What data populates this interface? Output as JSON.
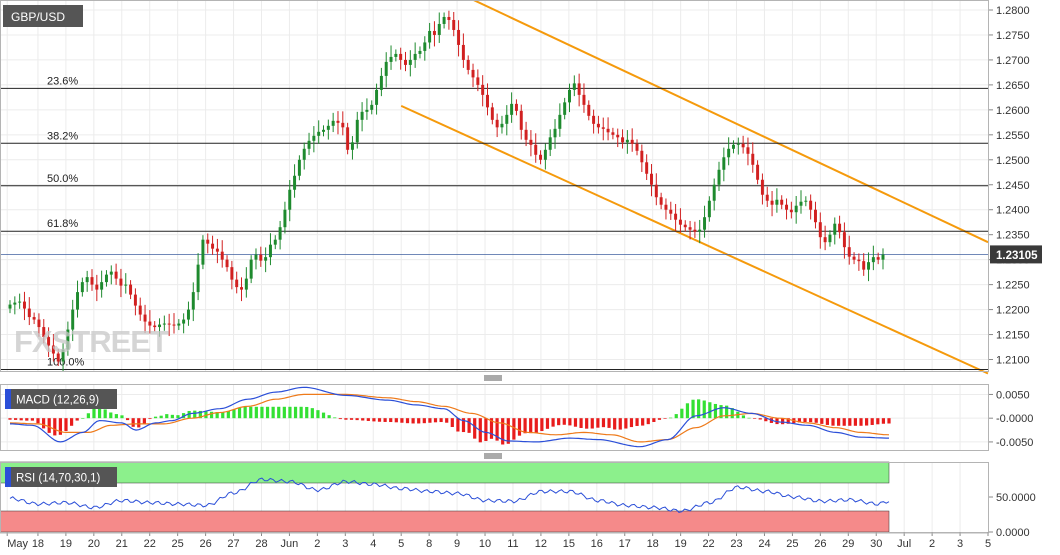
{
  "symbol": "GBP/USD",
  "last_price": "1.23105",
  "watermark": "FXSTREET",
  "colors": {
    "up": "#1e8a2e",
    "down": "#d12020",
    "channel": "#f59a0c",
    "macd_line": "#2b4fd8",
    "signal_line": "#ee7a1a",
    "hist_up": "#33e033",
    "hist_down": "#e81c1c",
    "rsi_line": "#2b4fd8",
    "rsi_overbought": "#8cf08c",
    "rsi_oversold": "#f58a8a",
    "last_price_badge": "#3a3a3a"
  },
  "chart_data": [
    {
      "type": "candlestick",
      "title": "GBP/USD",
      "ylim": [
        1.2075,
        1.282
      ],
      "y_ticks": [
        "1.2800",
        "1.2750",
        "1.2700",
        "1.2650",
        "1.2600",
        "1.2550",
        "1.2500",
        "1.2450",
        "1.2400",
        "1.2350",
        "1.2300",
        "1.2250",
        "1.2200",
        "1.2150",
        "1.2100"
      ],
      "x_ticks": [
        {
          "label": "May",
          "slot": -0.5
        },
        {
          "label": "18",
          "slot": 5
        },
        {
          "label": "19",
          "slot": 10
        },
        {
          "label": "20",
          "slot": 15
        },
        {
          "label": "21",
          "slot": 20
        },
        {
          "label": "22",
          "slot": 25
        },
        {
          "label": "25",
          "slot": 30
        },
        {
          "label": "26",
          "slot": 35
        },
        {
          "label": "27",
          "slot": 40
        },
        {
          "label": "28",
          "slot": 45
        },
        {
          "label": "Jun",
          "slot": 50
        },
        {
          "label": "2",
          "slot": 55
        },
        {
          "label": "3",
          "slot": 60
        },
        {
          "label": "4",
          "slot": 65
        },
        {
          "label": "5",
          "slot": 70
        },
        {
          "label": "8",
          "slot": 75
        },
        {
          "label": "9",
          "slot": 80
        },
        {
          "label": "10",
          "slot": 85
        },
        {
          "label": "11",
          "slot": 90
        },
        {
          "label": "12",
          "slot": 95
        },
        {
          "label": "15",
          "slot": 100
        },
        {
          "label": "16",
          "slot": 105
        },
        {
          "label": "17",
          "slot": 110
        },
        {
          "label": "18",
          "slot": 115
        },
        {
          "label": "19",
          "slot": 120
        },
        {
          "label": "22",
          "slot": 125
        },
        {
          "label": "23",
          "slot": 130
        },
        {
          "label": "24",
          "slot": 135
        },
        {
          "label": "25",
          "slot": 140
        },
        {
          "label": "26",
          "slot": 145
        },
        {
          "label": "29",
          "slot": 150
        },
        {
          "label": "30",
          "slot": 155
        },
        {
          "label": "Jul",
          "slot": 160
        },
        {
          "label": "2",
          "slot": 165
        },
        {
          "label": "3",
          "slot": 170
        },
        {
          "label": "5",
          "slot": 175
        }
      ],
      "fibonacci": [
        {
          "label": "23.6%",
          "price": 1.2643
        },
        {
          "label": "38.2%",
          "price": 1.2533
        },
        {
          "label": "50.0%",
          "price": 1.2448
        },
        {
          "label": "61.8%",
          "price": 1.2357
        },
        {
          "label": "100.0%",
          "price": 1.208
        }
      ],
      "current_price": 1.23105,
      "channel": [
        {
          "slot_start": 82,
          "price_start": 1.2825,
          "slot_end": 175,
          "price_end": 1.2335
        },
        {
          "slot_start": 70,
          "price_start": 1.2608,
          "slot_end": 175,
          "price_end": 1.2072
        }
      ],
      "closes": [
        1.221,
        1.2214,
        1.2216,
        1.2202,
        1.2185,
        1.218,
        1.2165,
        1.2145,
        1.2128,
        1.2112,
        1.2096,
        1.212,
        1.216,
        1.22,
        1.2235,
        1.2255,
        1.2265,
        1.225,
        1.224,
        1.2255,
        1.227,
        1.2276,
        1.2262,
        1.2248,
        1.225,
        1.223,
        1.2208,
        1.219,
        1.2176,
        1.2168,
        1.2165,
        1.217,
        1.2172,
        1.217,
        1.2168,
        1.2172,
        1.218,
        1.22,
        1.2235,
        1.229,
        1.234,
        1.2332,
        1.2322,
        1.2316,
        1.23,
        1.2285,
        1.226,
        1.2245,
        1.224,
        1.2262,
        1.23,
        1.231,
        1.2298,
        1.2305,
        1.233,
        1.234,
        1.2365,
        1.24,
        1.244,
        1.2468,
        1.25,
        1.2522,
        1.2538,
        1.2548,
        1.2556,
        1.256,
        1.2568,
        1.2578,
        1.2574,
        1.2565,
        1.252,
        1.2535,
        1.258,
        1.2596,
        1.26,
        1.261,
        1.264,
        1.2668,
        1.2696,
        1.2706,
        1.2712,
        1.27,
        1.269,
        1.27,
        1.2712,
        1.2718,
        1.2735,
        1.2758,
        1.275,
        1.2772,
        1.2786,
        1.278,
        1.276,
        1.273,
        1.27,
        1.268,
        1.2665,
        1.265,
        1.263,
        1.2605,
        1.258,
        1.2565,
        1.2572,
        1.259,
        1.2612,
        1.2598,
        1.256,
        1.254,
        1.253,
        1.251,
        1.25,
        1.252,
        1.2545,
        1.2562,
        1.259,
        1.2615,
        1.264,
        1.2653,
        1.263,
        1.261,
        1.2588,
        1.2572,
        1.2565,
        1.2562,
        1.2555,
        1.255,
        1.2545,
        1.2535,
        1.254,
        1.2532,
        1.2518,
        1.2495,
        1.2472,
        1.245,
        1.2425,
        1.241,
        1.24,
        1.2392,
        1.238,
        1.237,
        1.2365,
        1.236,
        1.2356,
        1.236,
        1.2385,
        1.2418,
        1.245,
        1.248,
        1.2505,
        1.2522,
        1.253,
        1.2532,
        1.2525,
        1.2512,
        1.249,
        1.246,
        1.243,
        1.2418,
        1.241,
        1.242,
        1.241,
        1.24,
        1.2395,
        1.2408,
        1.2416,
        1.2418,
        1.24,
        1.2375,
        1.2345,
        1.2335,
        1.235,
        1.2372,
        1.2355,
        1.2325,
        1.2306,
        1.23,
        1.2297,
        1.228,
        1.2295,
        1.2305,
        1.23,
        1.231
      ]
    },
    {
      "type": "line",
      "title": "MACD (12,26,9)",
      "ylim": [
        -0.0067,
        0.0072
      ],
      "y_ticks": [
        "0.0050",
        "-0.0000",
        "-0.0050"
      ],
      "series": [
        {
          "name": "MACD",
          "anchors": [
            [
              0,
              -0.0012
            ],
            [
              8,
              -0.0015
            ],
            [
              18,
              -0.005
            ],
            [
              26,
              -0.003
            ],
            [
              32,
              -0.0005
            ],
            [
              40,
              -0.001
            ],
            [
              45,
              -0.0025
            ],
            [
              52,
              -0.001
            ],
            [
              58,
              -0.0005
            ],
            [
              65,
              0.001
            ],
            [
              75,
              0.002
            ],
            [
              85,
              0.004
            ],
            [
              95,
              0.0055
            ],
            [
              105,
              0.0065
            ],
            [
              120,
              0.0048
            ],
            [
              135,
              0.0038
            ],
            [
              145,
              0.0028
            ],
            [
              155,
              0.002
            ],
            [
              162,
              -0.0005
            ],
            [
              170,
              -0.003
            ],
            [
              178,
              -0.0048
            ],
            [
              188,
              -0.005
            ],
            [
              200,
              -0.0042
            ],
            [
              210,
              -0.0045
            ],
            [
              225,
              -0.006
            ],
            [
              235,
              -0.0045
            ],
            [
              245,
              0.0005
            ],
            [
              255,
              0.0022
            ],
            [
              265,
              0.001
            ],
            [
              275,
              -0.0008
            ],
            [
              285,
              -0.0015
            ],
            [
              295,
              -0.003
            ],
            [
              304,
              -0.004
            ],
            [
              314,
              -0.0042
            ]
          ]
        },
        {
          "name": "Signal",
          "anchors": [
            [
              0,
              -0.001
            ],
            [
              10,
              -0.0012
            ],
            [
              20,
              -0.003
            ],
            [
              28,
              -0.003
            ],
            [
              36,
              -0.0015
            ],
            [
              45,
              -0.0012
            ],
            [
              55,
              -0.0012
            ],
            [
              65,
              0.0
            ],
            [
              75,
              0.0012
            ],
            [
              85,
              0.0025
            ],
            [
              95,
              0.004
            ],
            [
              105,
              0.005
            ],
            [
              120,
              0.005
            ],
            [
              135,
              0.0043
            ],
            [
              145,
              0.0035
            ],
            [
              155,
              0.0025
            ],
            [
              165,
              0.001
            ],
            [
              175,
              -0.001
            ],
            [
              185,
              -0.003
            ],
            [
              195,
              -0.0035
            ],
            [
              205,
              -0.003
            ],
            [
              215,
              -0.0035
            ],
            [
              225,
              -0.005
            ],
            [
              235,
              -0.0045
            ],
            [
              245,
              -0.002
            ],
            [
              255,
              0.0005
            ],
            [
              265,
              0.001
            ],
            [
              275,
              0.0
            ],
            [
              285,
              -0.001
            ],
            [
              295,
              -0.002
            ],
            [
              304,
              -0.003
            ],
            [
              314,
              -0.0035
            ]
          ]
        }
      ]
    },
    {
      "type": "line",
      "title": "RSI (14,70,30,1)",
      "ylim": [
        0,
        100
      ],
      "overbought": 70,
      "oversold": 30,
      "y_ticks": [
        "50.0000",
        "0.0000"
      ],
      "series": [
        {
          "name": "RSI",
          "anchors": [
            [
              0,
              48
            ],
            [
              10,
              40
            ],
            [
              20,
              42
            ],
            [
              30,
              35
            ],
            [
              40,
              45
            ],
            [
              50,
              42
            ],
            [
              60,
              40
            ],
            [
              70,
              38
            ],
            [
              80,
              56
            ],
            [
              90,
              75
            ],
            [
              100,
              72
            ],
            [
              110,
              60
            ],
            [
              120,
              72
            ],
            [
              130,
              68
            ],
            [
              140,
              62
            ],
            [
              150,
              58
            ],
            [
              160,
              55
            ],
            [
              170,
              45
            ],
            [
              180,
              44
            ],
            [
              190,
              58
            ],
            [
              200,
              58
            ],
            [
              210,
              45
            ],
            [
              220,
              38
            ],
            [
              230,
              35
            ],
            [
              240,
              30
            ],
            [
              250,
              42
            ],
            [
              260,
              64
            ],
            [
              270,
              58
            ],
            [
              280,
              50
            ],
            [
              290,
              44
            ],
            [
              300,
              46
            ],
            [
              310,
              40
            ],
            [
              314,
              44
            ]
          ]
        }
      ]
    }
  ]
}
